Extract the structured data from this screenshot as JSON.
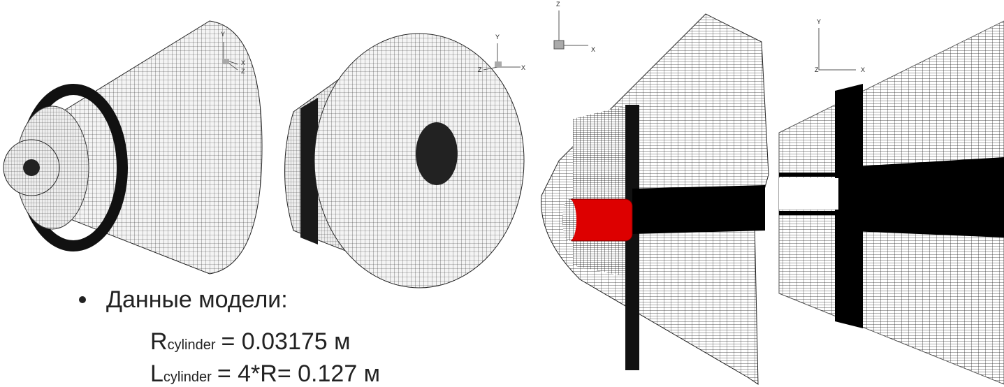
{
  "figures": [
    {
      "axes": [
        "Y",
        "X",
        "Z"
      ]
    },
    {
      "axes": [
        "Y",
        "Z",
        "X"
      ]
    },
    {
      "axes": [
        "Z",
        "X"
      ]
    },
    {
      "axes": [
        "Y",
        "Z",
        "X"
      ]
    }
  ],
  "bullet": {
    "title": "Данные модели:",
    "lines": [
      {
        "symbol": "R",
        "subscript": "cylinder",
        "expression": "= 0.03175 м"
      },
      {
        "symbol": "L",
        "subscript": "cylinder",
        "expression": "= 4*R= 0.127 м"
      }
    ]
  }
}
